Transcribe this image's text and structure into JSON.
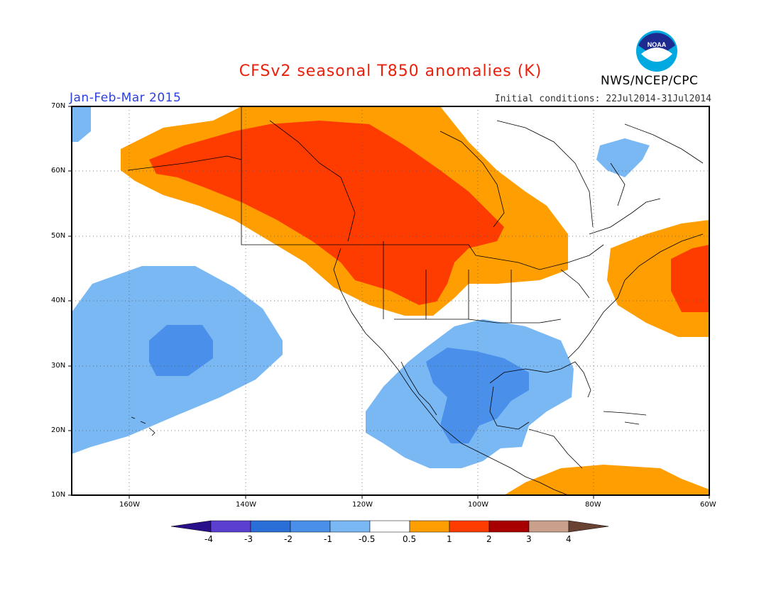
{
  "header": {
    "title": "CFSv2 seasonal T850 anomalies (K)",
    "season": "Jan-Feb-Mar 2015",
    "initial_conditions": "Initial conditions: 22Jul2014-31Jul2014",
    "agency": "NWS/NCEP/CPC",
    "logo_text": "NOAA"
  },
  "axes": {
    "lat_labels": [
      "70N",
      "60N",
      "50N",
      "40N",
      "30N",
      "20N",
      "10N"
    ],
    "lon_labels": [
      "160W",
      "140W",
      "120W",
      "100W",
      "80W",
      "60W"
    ]
  },
  "colorbar": {
    "tick_labels": [
      "-4",
      "-3",
      "-2",
      "-1",
      "-0.5",
      "0.5",
      "1",
      "2",
      "3",
      "4"
    ],
    "colors": [
      "#2a0f8a",
      "#5a3fd0",
      "#2a6fd8",
      "#4a90ea",
      "#7ab8f4",
      "#ffffff",
      "#ff9e00",
      "#ff3c00",
      "#a80000",
      "#c8a08c",
      "#6a4234"
    ]
  },
  "legend_colors": {
    "ocean_bg": "#ffffff",
    "coast": "#000000",
    "grid": "#555555"
  }
}
